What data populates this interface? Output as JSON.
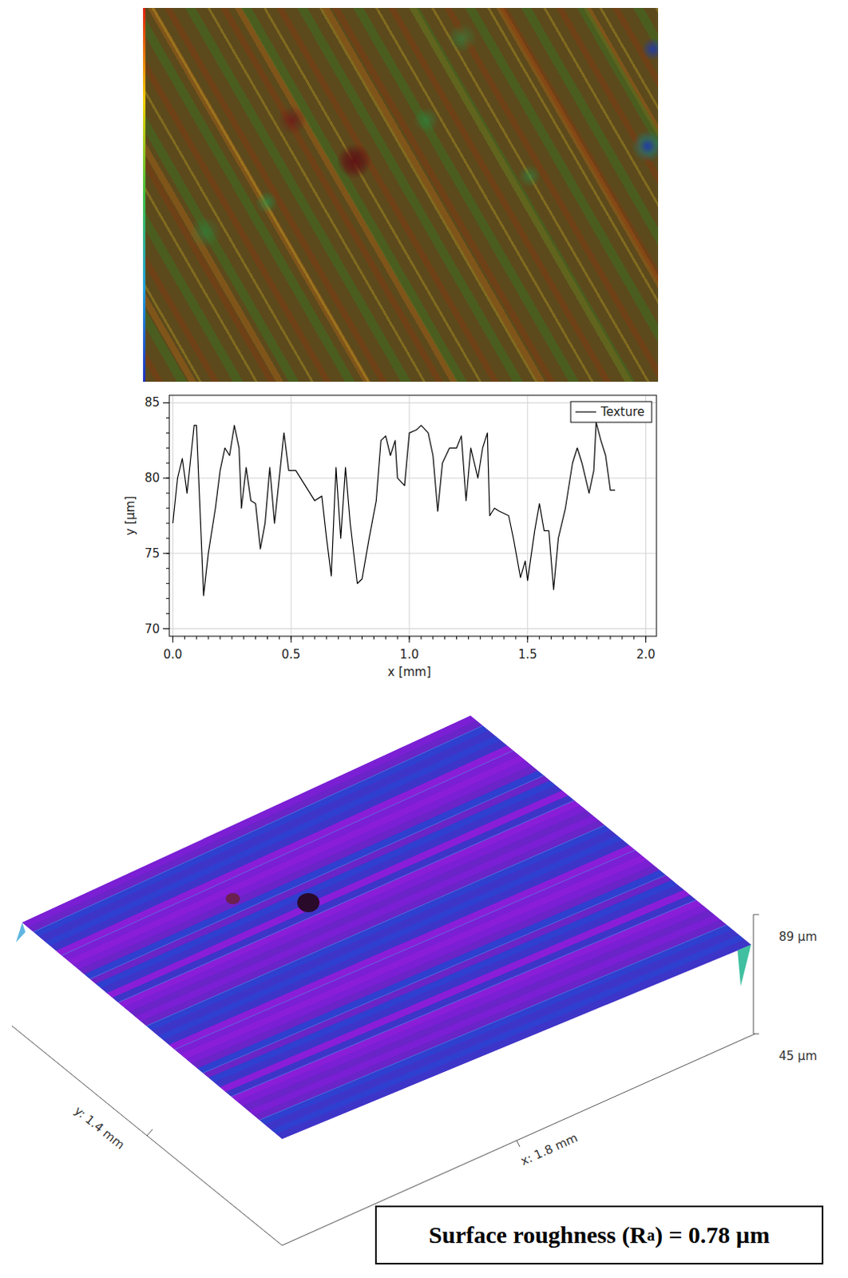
{
  "chart_data": {
    "type": "line",
    "xlabel": "x [mm]",
    "ylabel": "y [µm]",
    "x": [
      0,
      0.02,
      0.04,
      0.06,
      0.08,
      0.09,
      0.1,
      0.12,
      0.13,
      0.15,
      0.18,
      0.2,
      0.22,
      0.24,
      0.26,
      0.28,
      0.29,
      0.31,
      0.33,
      0.35,
      0.37,
      0.39,
      0.41,
      0.43,
      0.45,
      0.47,
      0.49,
      0.52,
      0.56,
      0.6,
      0.63,
      0.65,
      0.67,
      0.69,
      0.71,
      0.73,
      0.75,
      0.78,
      0.8,
      0.83,
      0.86,
      0.88,
      0.9,
      0.92,
      0.94,
      0.95,
      0.98,
      1.0,
      1.03,
      1.05,
      1.08,
      1.1,
      1.12,
      1.14,
      1.17,
      1.2,
      1.22,
      1.24,
      1.26,
      1.29,
      1.31,
      1.33,
      1.34,
      1.36,
      1.38,
      1.42,
      1.44,
      1.47,
      1.49,
      1.5,
      1.53,
      1.55,
      1.57,
      1.59,
      1.61,
      1.63,
      1.66,
      1.69,
      1.71,
      1.73,
      1.76,
      1.78,
      1.79,
      1.81,
      1.83,
      1.85,
      1.87
    ],
    "series": [
      {
        "name": "Texture",
        "color": "#000000",
        "values": [
          77,
          80,
          81.3,
          79,
          82,
          83.5,
          83.5,
          76,
          72.2,
          75,
          78,
          80.5,
          82,
          81.5,
          83.5,
          82,
          78,
          80.7,
          78.5,
          78.3,
          75.3,
          77,
          80.7,
          77,
          80,
          83,
          80.5,
          80.5,
          79.5,
          78.5,
          78.8,
          76,
          73.5,
          80.7,
          76,
          80.7,
          77,
          73,
          73.3,
          76,
          78.5,
          82.5,
          82.8,
          81.5,
          82.5,
          80,
          79.5,
          83,
          83.2,
          83.5,
          83,
          81.5,
          77.8,
          81,
          82,
          82,
          82.8,
          78.5,
          82,
          80,
          82,
          83,
          77.5,
          78,
          77.8,
          77.5,
          76,
          73.4,
          74.5,
          73.2,
          76.5,
          78.3,
          76.5,
          76.5,
          72.6,
          76,
          78,
          81,
          82,
          81,
          79,
          80.5,
          83.7,
          82.5,
          81.5,
          79.2,
          79.2
        ]
      }
    ],
    "xlim": [
      -0.015,
      2.045
    ],
    "ylim": [
      69.5,
      85.5
    ],
    "xticks": [
      {
        "value": 0,
        "label": "0.0"
      },
      {
        "value": 0.5,
        "label": "0.5"
      },
      {
        "value": 1,
        "label": "1.0"
      },
      {
        "value": 1.5,
        "label": "1.5"
      },
      {
        "value": 2,
        "label": "2.0"
      }
    ],
    "yticks": [
      70,
      75,
      80,
      85
    ],
    "grid": true,
    "legend": "upper right"
  },
  "surface_3d": {
    "x_label": "x: 1.8 mm",
    "y_label": "y: 1.4 mm",
    "zlim": [
      45,
      89
    ],
    "zticks": [
      {
        "value": 45,
        "label": "45 µm"
      },
      {
        "value": 89,
        "label": "89 µm"
      }
    ]
  },
  "result": {
    "text_before": "Surface roughness (R",
    "subscript": "a",
    "text_after": ") = 0.78 µm"
  }
}
